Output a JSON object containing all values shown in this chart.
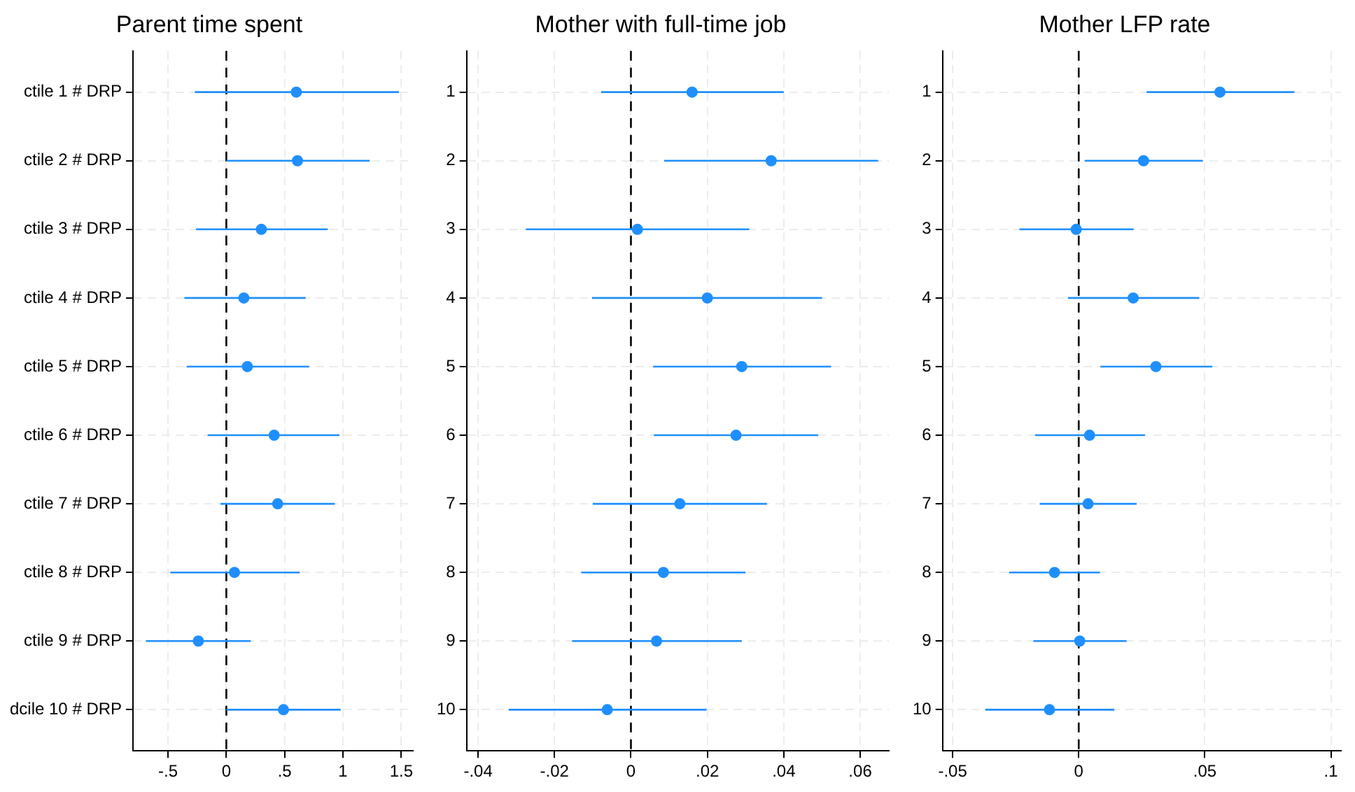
{
  "chart_data": [
    {
      "type": "scatter",
      "orientation": "horizontal",
      "title": "Parent time spent",
      "categories": [
        "ctile 1 # DRP",
        "ctile 2 # DRP",
        "ctile 3 # DRP",
        "ctile 4 # DRP",
        "ctile 5 # DRP",
        "ctile 6 # DRP",
        "ctile 7 # DRP",
        "ctile 8 # DRP",
        "ctile 9 # DRP",
        "dcile 10 # DRP"
      ],
      "color": "#1f8fff",
      "marker": "circle",
      "grid": true,
      "values": [
        0.6,
        0.61,
        0.3,
        0.15,
        0.18,
        0.41,
        0.44,
        0.07,
        -0.24,
        0.49
      ],
      "errors": [
        [
          -0.27,
          1.48
        ],
        [
          0.0,
          1.23
        ],
        [
          -0.26,
          0.87
        ],
        [
          -0.36,
          0.68
        ],
        [
          -0.34,
          0.71
        ],
        [
          -0.16,
          0.97
        ],
        [
          -0.05,
          0.93
        ],
        [
          -0.48,
          0.63
        ],
        [
          -0.69,
          0.21
        ],
        [
          0.0,
          0.98
        ]
      ],
      "xlim": [
        -0.8,
        1.6
      ],
      "xticks": [
        {
          "value": -0.5,
          "label": "-.5"
        },
        0,
        {
          "value": 0.5,
          "label": ".5"
        },
        1,
        1.5
      ],
      "ref_lines": [
        {
          "axis": "x",
          "value": 0,
          "color": "#000000",
          "line_style": "dashed"
        }
      ]
    },
    {
      "type": "scatter",
      "orientation": "horizontal",
      "title": "Mother with full-time job",
      "categories": [
        "1",
        "2",
        "3",
        "4",
        "5",
        "6",
        "7",
        "8",
        "9",
        "10"
      ],
      "color": "#1f8fff",
      "marker": "circle",
      "grid": true,
      "values": [
        0.016,
        0.0367,
        0.0017,
        0.02,
        0.029,
        0.0275,
        0.0128,
        0.0085,
        0.0067,
        -0.0062
      ],
      "errors": [
        [
          -0.0078,
          0.04
        ],
        [
          0.0087,
          0.0647
        ],
        [
          -0.0275,
          0.031
        ],
        [
          -0.0102,
          0.05
        ],
        [
          0.0058,
          0.0524
        ],
        [
          0.006,
          0.049
        ],
        [
          -0.01,
          0.0356
        ],
        [
          -0.013,
          0.03
        ],
        [
          -0.0154,
          0.029
        ],
        [
          -0.032,
          0.0198
        ]
      ],
      "xlim": [
        -0.043,
        0.0675
      ],
      "xticks": [
        {
          "value": -0.04,
          "label": "-.04"
        },
        {
          "value": -0.02,
          "label": "-.02"
        },
        0,
        {
          "value": 0.02,
          "label": ".02"
        },
        {
          "value": 0.04,
          "label": ".04"
        },
        {
          "value": 0.06,
          "label": ".06"
        }
      ],
      "ref_lines": [
        {
          "axis": "x",
          "value": 0,
          "color": "#000000",
          "line_style": "dashed"
        }
      ]
    },
    {
      "type": "scatter",
      "orientation": "horizontal",
      "title": "Mother LFP rate",
      "categories": [
        "1",
        "2",
        "3",
        "4",
        "5",
        "6",
        "7",
        "8",
        "9",
        "10"
      ],
      "color": "#1f8fff",
      "marker": "circle",
      "grid": true,
      "values": [
        0.056,
        0.0257,
        -0.001,
        0.0216,
        0.0306,
        0.0043,
        0.0037,
        -0.0096,
        0.0004,
        -0.0116
      ],
      "errors": [
        [
          0.0269,
          0.0855
        ],
        [
          0.0024,
          0.0492
        ],
        [
          -0.0235,
          0.0218
        ],
        [
          -0.0043,
          0.0478
        ],
        [
          0.0086,
          0.053
        ],
        [
          -0.0173,
          0.0263
        ],
        [
          -0.0155,
          0.023
        ],
        [
          -0.0276,
          0.0084
        ],
        [
          -0.018,
          0.019
        ],
        [
          -0.037,
          0.0141
        ]
      ],
      "xlim": [
        -0.054,
        0.104
      ],
      "xticks": [
        {
          "value": -0.05,
          "label": "-.05"
        },
        0,
        {
          "value": 0.05,
          "label": ".05"
        },
        {
          "value": 0.1,
          "label": ".1"
        }
      ],
      "ref_lines": [
        {
          "axis": "x",
          "value": 0,
          "color": "#000000",
          "line_style": "dashed"
        }
      ]
    }
  ]
}
